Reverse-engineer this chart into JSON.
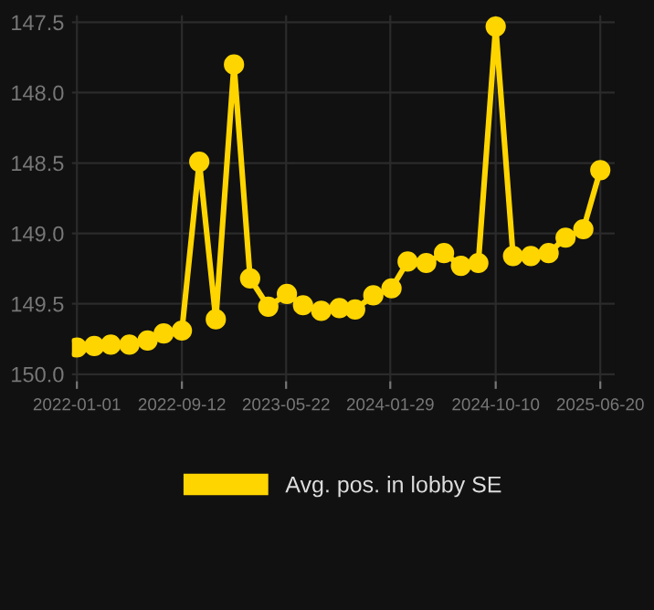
{
  "chart_data": {
    "type": "line",
    "x": [
      "2022-01-01",
      "2022-02-12",
      "2022-03-24",
      "2022-05-08",
      "2022-06-21",
      "2022-07-30",
      "2022-09-12",
      "2022-10-24",
      "2022-12-03",
      "2023-01-16",
      "2023-02-24",
      "2023-04-09",
      "2023-05-24",
      "2023-07-02",
      "2023-08-15",
      "2023-09-28",
      "2023-11-05",
      "2023-12-19",
      "2024-02-01",
      "2024-03-11",
      "2024-04-25",
      "2024-06-07",
      "2024-07-18",
      "2024-08-29",
      "2024-10-10",
      "2024-11-21",
      "2025-01-03",
      "2025-02-15",
      "2025-03-28",
      "2025-05-10",
      "2025-06-20"
    ],
    "series": [
      {
        "name": "Avg. pos. in lobby SE",
        "color": "#ffd500",
        "values": [
          149.81,
          149.8,
          149.79,
          149.79,
          149.76,
          149.71,
          149.69,
          148.49,
          149.61,
          147.8,
          149.32,
          149.52,
          149.43,
          149.51,
          149.55,
          149.53,
          149.54,
          149.44,
          149.39,
          149.2,
          149.21,
          149.14,
          149.23,
          149.21,
          147.53,
          149.16,
          149.16,
          149.14,
          149.03,
          148.97,
          148.55
        ]
      }
    ],
    "ylim": [
      150.05,
      147.45
    ],
    "yticks": [
      {
        "value": 147.5,
        "label": "147.5"
      },
      {
        "value": 148.0,
        "label": "148.0"
      },
      {
        "value": 148.5,
        "label": "148.5"
      },
      {
        "value": 149.0,
        "label": "149.0"
      },
      {
        "value": 149.5,
        "label": "149.5"
      },
      {
        "value": 150.0,
        "label": "150.0"
      }
    ],
    "xlim": [
      "2021-12-20",
      "2025-07-25"
    ],
    "xticks": [
      "2022-01-01",
      "2022-09-12",
      "2023-05-22",
      "2024-01-29",
      "2024-10-10",
      "2025-06-20"
    ],
    "grid": true,
    "legend": "bottom",
    "marker": "circle",
    "line_style": "solid"
  }
}
